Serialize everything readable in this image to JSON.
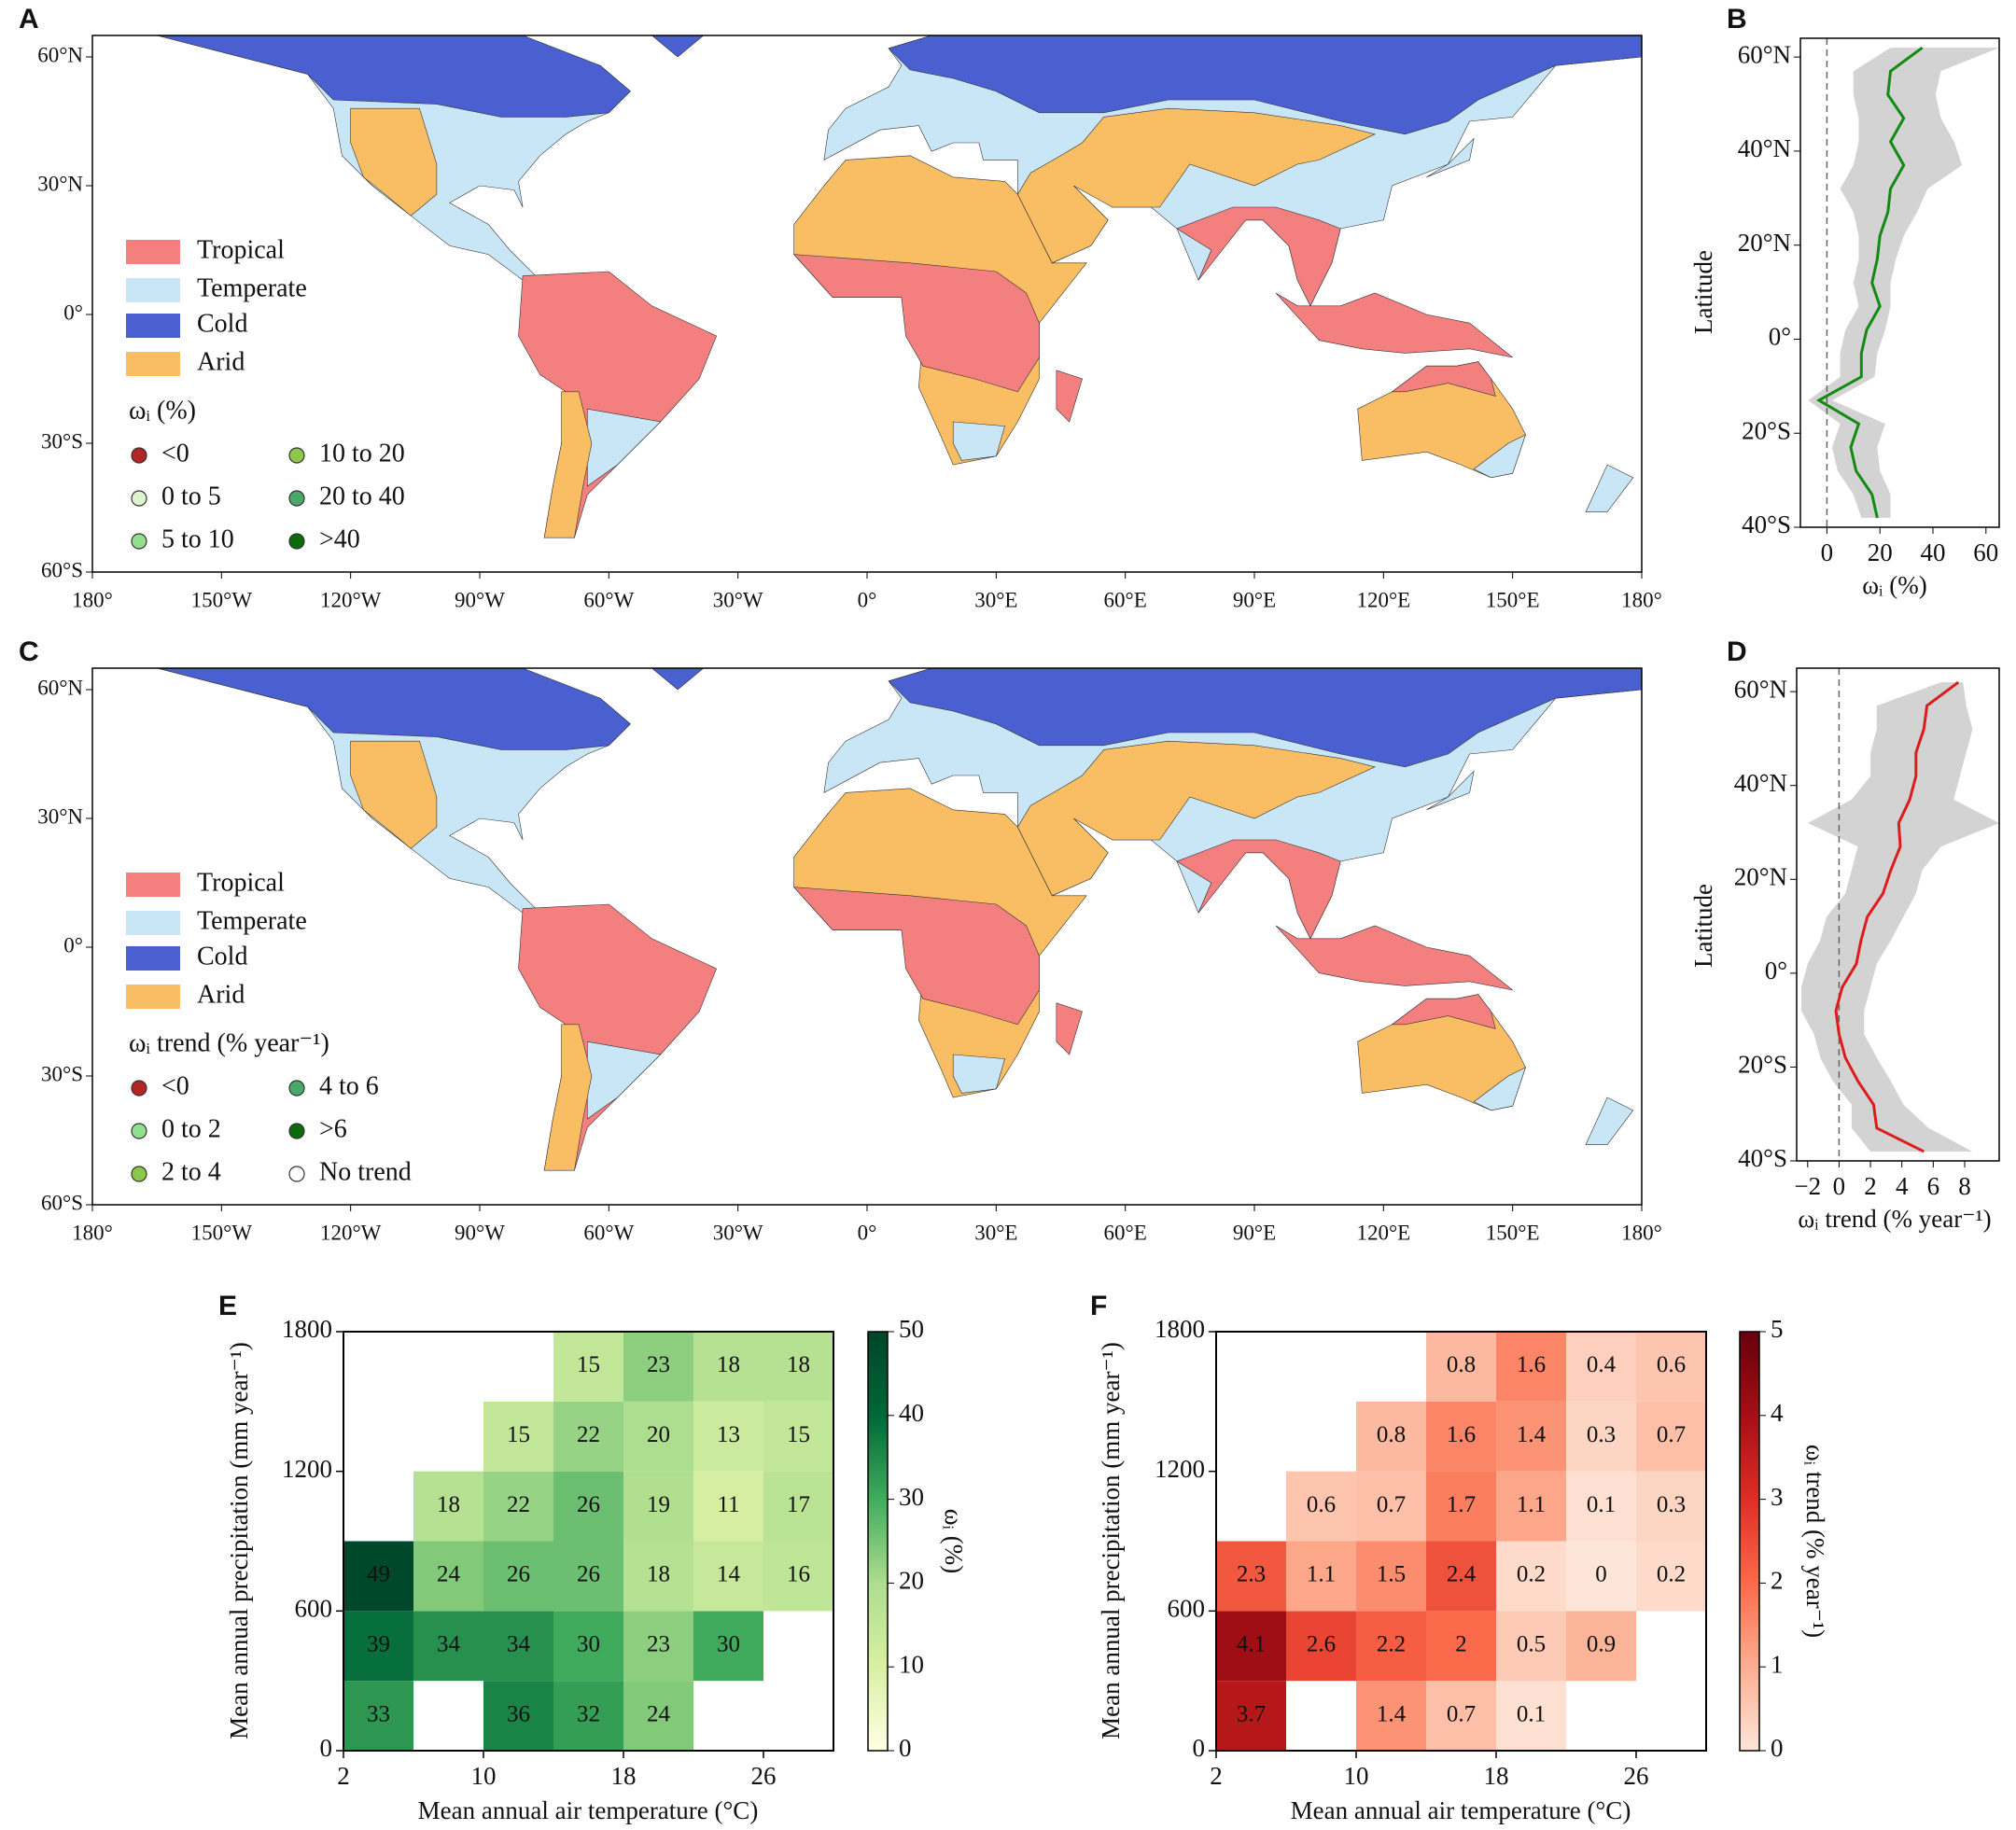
{
  "chart_data": [
    {
      "type": "map",
      "panel": "A",
      "legend_title": "ωᵢ (%)",
      "zones": [
        {
          "name": "Tropical",
          "color": "#f47f7f"
        },
        {
          "name": "Temperate",
          "color": "#c8e6f5"
        },
        {
          "name": "Cold",
          "color": "#4a5fd0"
        },
        {
          "name": "Arid",
          "color": "#f9bd63"
        }
      ],
      "point_classes": [
        {
          "name": "<0",
          "color": "#b22525"
        },
        {
          "name": "0 to 5",
          "color": "#dcf5cf"
        },
        {
          "name": "5 to 10",
          "color": "#92e08f"
        },
        {
          "name": "10 to 20",
          "color": "#8cc84c"
        },
        {
          "name": "20 to 40",
          "color": "#4aa86a"
        },
        {
          "name": ">40",
          "color": "#0b6b0b"
        }
      ],
      "xlim": [
        -180,
        180
      ],
      "ylim": [
        -60,
        65
      ],
      "xticks": [
        {
          "value": -180,
          "label": "180°"
        },
        {
          "value": -150,
          "label": "150°W"
        },
        {
          "value": -120,
          "label": "120°W"
        },
        {
          "value": -90,
          "label": "90°W"
        },
        {
          "value": -60,
          "label": "60°W"
        },
        {
          "value": -30,
          "label": "30°W"
        },
        {
          "value": 0,
          "label": "0°"
        },
        {
          "value": 30,
          "label": "30°E"
        },
        {
          "value": 60,
          "label": "60°E"
        },
        {
          "value": 90,
          "label": "90°E"
        },
        {
          "value": 120,
          "label": "120°E"
        },
        {
          "value": 150,
          "label": "150°E"
        },
        {
          "value": 180,
          "label": "180°"
        }
      ],
      "yticks": [
        {
          "value": 60,
          "label": "60°N"
        },
        {
          "value": 30,
          "label": "30°N"
        },
        {
          "value": 0,
          "label": "0°"
        },
        {
          "value": -30,
          "label": "30°S"
        },
        {
          "value": -60,
          "label": "60°S"
        }
      ]
    },
    {
      "type": "profile",
      "panel": "B",
      "xlabel": "ωᵢ (%)",
      "ylabel": "Latitude",
      "y": [
        62,
        57,
        52,
        47,
        42,
        37,
        32,
        27,
        22,
        17,
        12,
        7,
        2,
        -3,
        -8,
        -13,
        -18,
        -23,
        -28,
        -33,
        -38
      ],
      "series": [
        {
          "color": "#138a13",
          "values": [
            36,
            24,
            23,
            29,
            24,
            29,
            24,
            23,
            20,
            19,
            17,
            20,
            15,
            13,
            13,
            -3,
            12,
            9,
            11,
            17,
            19
          ]
        }
      ],
      "band": {
        "color": "#d3d3d3",
        "upper": [
          65,
          43,
          41,
          43,
          48,
          51,
          38,
          34,
          29,
          26,
          24,
          24,
          22,
          19,
          18,
          2,
          22,
          19,
          20,
          24,
          24
        ],
        "lower": [
          24,
          10,
          10,
          12,
          12,
          10,
          5,
          10,
          12,
          12,
          10,
          12,
          7,
          5,
          5,
          -7,
          5,
          2,
          4,
          10,
          13
        ]
      },
      "vline": 0,
      "xlim": [
        -10,
        65
      ],
      "ylim": [
        -40,
        64
      ],
      "xticks": [
        0,
        20,
        40,
        60
      ],
      "yticks": [
        {
          "value": 60,
          "label": "60°N"
        },
        {
          "value": 40,
          "label": "40°N"
        },
        {
          "value": 20,
          "label": "20°N"
        },
        {
          "value": 0,
          "label": "0°"
        },
        {
          "value": -20,
          "label": "20°S"
        },
        {
          "value": -40,
          "label": "40°S"
        }
      ]
    },
    {
      "type": "map",
      "panel": "C",
      "legend_title": "ωᵢ trend (% year⁻¹)",
      "zones": [
        {
          "name": "Tropical",
          "color": "#f47f7f"
        },
        {
          "name": "Temperate",
          "color": "#c8e6f5"
        },
        {
          "name": "Cold",
          "color": "#4a5fd0"
        },
        {
          "name": "Arid",
          "color": "#f9bd63"
        }
      ],
      "point_classes": [
        {
          "name": "<0",
          "color": "#b22525"
        },
        {
          "name": "0 to 2",
          "color": "#92e08f"
        },
        {
          "name": "2 to 4",
          "color": "#8cc84c"
        },
        {
          "name": "4 to 6",
          "color": "#4aa86a"
        },
        {
          "name": ">6",
          "color": "#0b6b0b"
        },
        {
          "name": "No trend",
          "color": "#ffffff"
        }
      ],
      "xlim": [
        -180,
        180
      ],
      "ylim": [
        -60,
        65
      ],
      "xticks": [
        {
          "value": -180,
          "label": "180°"
        },
        {
          "value": -150,
          "label": "150°W"
        },
        {
          "value": -120,
          "label": "120°W"
        },
        {
          "value": -90,
          "label": "90°W"
        },
        {
          "value": -60,
          "label": "60°W"
        },
        {
          "value": -30,
          "label": "30°W"
        },
        {
          "value": 0,
          "label": "0°"
        },
        {
          "value": 30,
          "label": "30°E"
        },
        {
          "value": 60,
          "label": "60°E"
        },
        {
          "value": 90,
          "label": "90°E"
        },
        {
          "value": 120,
          "label": "120°E"
        },
        {
          "value": 150,
          "label": "150°E"
        },
        {
          "value": 180,
          "label": "180°"
        }
      ],
      "yticks": [
        {
          "value": 60,
          "label": "60°N"
        },
        {
          "value": 30,
          "label": "30°N"
        },
        {
          "value": 0,
          "label": "0°"
        },
        {
          "value": -30,
          "label": "30°S"
        },
        {
          "value": -60,
          "label": "60°S"
        }
      ]
    },
    {
      "type": "profile",
      "panel": "D",
      "xlabel": "ωᵢ trend (% year⁻¹)",
      "ylabel": "Latitude",
      "y": [
        62,
        57,
        52,
        47,
        42,
        37,
        32,
        27,
        22,
        17,
        12,
        7,
        2,
        -3,
        -8,
        -13,
        -18,
        -23,
        -28,
        -33,
        -38
      ],
      "series": [
        {
          "color": "#dd1c1c",
          "values": [
            7.6,
            5.6,
            5.4,
            4.9,
            4.9,
            4.5,
            3.8,
            3.9,
            3.3,
            2.8,
            1.8,
            1.4,
            1.1,
            0.2,
            -0.2,
            0,
            0.4,
            1.2,
            2.2,
            2.4,
            5.4
          ]
        }
      ],
      "band": {
        "color": "#d3d3d3",
        "upper": [
          7.9,
          8.1,
          8.5,
          8.1,
          7.7,
          7.3,
          10.2,
          6.5,
          5.3,
          4.9,
          4.1,
          3.3,
          2.4,
          2.0,
          1.6,
          1.6,
          2.4,
          3.3,
          4.1,
          5.7,
          8.5
        ],
        "lower": [
          6.5,
          2.4,
          2.4,
          2.0,
          2.0,
          0.8,
          -2.0,
          1.2,
          0.8,
          0.4,
          -0.8,
          -1.2,
          -2.0,
          -2.4,
          -2.4,
          -1.6,
          -1.2,
          -0.4,
          0.8,
          0.8,
          2.0
        ]
      },
      "vline": 0,
      "xlim": [
        -2.7,
        10.2
      ],
      "ylim": [
        -40,
        65
      ],
      "xticks": [
        {
          "value": -2,
          "label": "−2"
        },
        0,
        2,
        4,
        6,
        8
      ],
      "yticks": [
        {
          "value": 60,
          "label": "60°N"
        },
        {
          "value": 40,
          "label": "40°N"
        },
        {
          "value": 20,
          "label": "20°N"
        },
        {
          "value": 0,
          "label": "0°"
        },
        {
          "value": -20,
          "label": "20°S"
        },
        {
          "value": -40,
          "label": "40°S"
        }
      ]
    },
    {
      "type": "heatmap",
      "panel": "E",
      "xlabel": "Mean annual air temperature (°C)",
      "ylabel": "Mean annual precipitation (mm year⁻¹)",
      "colorbar_label": "ωᵢ (%)",
      "x_bins": [
        2,
        6,
        10,
        14,
        18,
        22,
        26,
        30
      ],
      "y_bins": [
        0,
        300,
        600,
        900,
        1200,
        1500,
        1800
      ],
      "values": [
        [
          33,
          null,
          36,
          32,
          24,
          null,
          null
        ],
        [
          39,
          34,
          34,
          30,
          23,
          30,
          null
        ],
        [
          49,
          24,
          26,
          26,
          18,
          14,
          16
        ],
        [
          null,
          18,
          22,
          26,
          19,
          11,
          17
        ],
        [
          null,
          null,
          15,
          22,
          20,
          13,
          15
        ],
        [
          null,
          null,
          null,
          15,
          23,
          18,
          18
        ]
      ],
      "xlim": [
        2,
        30
      ],
      "ylim": [
        0,
        1800
      ],
      "xticks": [
        2,
        10,
        18,
        26
      ],
      "yticks": [
        0,
        600,
        1200,
        1800
      ],
      "clim": [
        0,
        50
      ],
      "cticks": [
        0,
        10,
        20,
        30,
        40,
        50
      ],
      "colormap": [
        "#ffffe5",
        "#d9f0a3",
        "#addd8e",
        "#41ab5d",
        "#006837",
        "#004529"
      ]
    },
    {
      "type": "heatmap",
      "panel": "F",
      "xlabel": "Mean annual air temperature (°C)",
      "ylabel": "Mean annual precipitation (mm year⁻¹)",
      "colorbar_label": "ωᵢ trend (% year⁻¹)",
      "x_bins": [
        2,
        6,
        10,
        14,
        18,
        22,
        26,
        30
      ],
      "y_bins": [
        0,
        300,
        600,
        900,
        1200,
        1500,
        1800
      ],
      "values": [
        [
          3.7,
          null,
          1.4,
          0.7,
          0.1,
          null,
          null
        ],
        [
          4.1,
          2.6,
          2.2,
          2,
          0.5,
          0.9,
          null
        ],
        [
          2.3,
          1.1,
          1.5,
          2.4,
          0.2,
          0,
          0.2
        ],
        [
          null,
          0.6,
          0.7,
          1.7,
          1.1,
          0.1,
          0.3
        ],
        [
          null,
          null,
          0.8,
          1.6,
          1.4,
          0.3,
          0.7
        ],
        [
          null,
          null,
          null,
          0.8,
          1.6,
          0.4,
          0.6
        ]
      ],
      "xlim": [
        2,
        30
      ],
      "ylim": [
        0,
        1800
      ],
      "xticks": [
        2,
        10,
        18,
        26
      ],
      "yticks": [
        0,
        600,
        1200,
        1800
      ],
      "clim": [
        0,
        5
      ],
      "cticks": [
        0,
        1,
        2,
        3,
        4,
        5
      ],
      "colormap": [
        "#fee5d9",
        "#fcae91",
        "#fb6a4a",
        "#de2d26",
        "#a50f15",
        "#67000d"
      ]
    }
  ]
}
